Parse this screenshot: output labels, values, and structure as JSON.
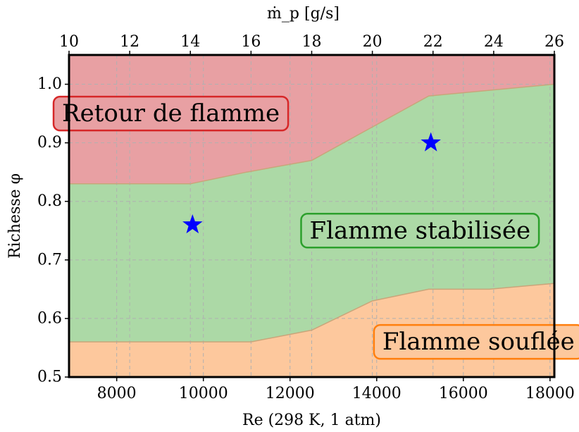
{
  "chart_data": {
    "type": "area",
    "xlabel": "Re (298 K, 1 atm)",
    "ylabel": "Richesse φ",
    "top_xlabel": "ṁ_p [g/s]",
    "xlim": [
      6900,
      18100
    ],
    "ylim": [
      0.5,
      1.05
    ],
    "top_xlim": [
      10,
      26
    ],
    "x_ticks": [
      8000,
      10000,
      12000,
      14000,
      16000,
      18000
    ],
    "x_tick_labels": [
      "8000",
      "10000",
      "12000",
      "14000",
      "16000",
      "18000"
    ],
    "y_ticks": [
      0.5,
      0.6,
      0.7,
      0.8,
      0.9,
      1.0
    ],
    "y_tick_labels": [
      "0.5",
      "0.6",
      "0.7",
      "0.8",
      "0.9",
      "1.0"
    ],
    "top_ticks": [
      10,
      12,
      14,
      16,
      18,
      20,
      22,
      24,
      26
    ],
    "top_tick_labels": [
      "10",
      "12",
      "14",
      "16",
      "18",
      "20",
      "22",
      "24",
      "26"
    ],
    "grid": true,
    "upper_boundary": {
      "x": [
        6900,
        9700,
        11000,
        12500,
        15200,
        18100
      ],
      "y": [
        0.83,
        0.83,
        0.85,
        0.87,
        0.98,
        1.0
      ]
    },
    "lower_boundary": {
      "x": [
        6900,
        11100,
        12500,
        13900,
        15200,
        16600,
        18100
      ],
      "y": [
        0.56,
        0.56,
        0.58,
        0.63,
        0.65,
        0.65,
        0.66
      ]
    },
    "regions": [
      {
        "label": "Retour de flamme",
        "color": "#e8a0a3",
        "edge": "#d62728",
        "anchor": {
          "x": 9250,
          "y": 0.95
        }
      },
      {
        "label": "Flamme stabilisée",
        "color": "#acd9a6",
        "edge": "#2ca02c",
        "anchor": {
          "x": 15000,
          "y": 0.75
        }
      },
      {
        "label": "Flamme souflée",
        "color": "#fdc89d",
        "edge": "#ff7f0e",
        "anchor": {
          "x": 16350,
          "y": 0.56
        }
      }
    ],
    "points": [
      {
        "x": 9750,
        "y": 0.76
      },
      {
        "x": 15250,
        "y": 0.9
      }
    ],
    "point_color": "#0000ff",
    "boundary_color": "#c9a57a"
  }
}
